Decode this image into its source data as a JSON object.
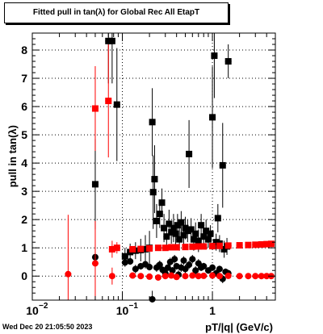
{
  "title": "Fitted pull in tan(λ) for Global Rec All EtapT",
  "timestamp": "Wed Dec 20 21:05:50 2023",
  "chart_data": {
    "type": "scatter",
    "title": "Fitted pull in tan(λ) for Global Rec All EtapT",
    "xlabel": "pT/|q| (GeV/c)",
    "ylabel": "pull in tan(λ)",
    "xscale": "log",
    "xlim": [
      0.01,
      5
    ],
    "ylim": [
      -0.85,
      8.6
    ],
    "grid": true,
    "x_ticks": [
      {
        "value": 0.01,
        "label": "10",
        "sup": "−2"
      },
      {
        "value": 0.1,
        "label": "10",
        "sup": "−1"
      },
      {
        "value": 1,
        "label": "1",
        "sup": ""
      }
    ],
    "y_ticks": [
      {
        "value": 0,
        "label": "0"
      },
      {
        "value": 1,
        "label": "1"
      },
      {
        "value": 2,
        "label": "2"
      },
      {
        "value": 3,
        "label": "3"
      },
      {
        "value": 4,
        "label": "4"
      },
      {
        "value": 5,
        "label": "5"
      },
      {
        "value": 6,
        "label": "6"
      },
      {
        "value": 7,
        "label": "7"
      },
      {
        "value": 8,
        "label": "8"
      }
    ],
    "series": [
      {
        "key": "black_sigma",
        "color": "#000000",
        "marker": "square",
        "points": [
          [
            0.05,
            3.25,
            1.6
          ],
          [
            0.07,
            8.32,
            1.5
          ],
          [
            0.077,
            8.32,
            1.5
          ],
          [
            0.087,
            6.07,
            2.0
          ],
          [
            0.107,
            0.7,
            0.3
          ],
          [
            0.122,
            0.85,
            0.3
          ],
          [
            0.14,
            0.9,
            0.3
          ],
          [
            0.16,
            0.92,
            0.4
          ],
          [
            0.18,
            0.95,
            0.5
          ],
          [
            0.2,
            1.0,
            0.6
          ],
          [
            0.215,
            5.45,
            1.2
          ],
          [
            0.22,
            2.97,
            1.3
          ],
          [
            0.228,
            3.43,
            1.2
          ],
          [
            0.24,
            1.95,
            0.6
          ],
          [
            0.26,
            2.2,
            0.5
          ],
          [
            0.275,
            2.6,
            0.5
          ],
          [
            0.29,
            1.7,
            0.5
          ],
          [
            0.31,
            1.4,
            0.5
          ],
          [
            0.33,
            1.85,
            0.5
          ],
          [
            0.35,
            1.55,
            0.4
          ],
          [
            0.37,
            1.7,
            0.5
          ],
          [
            0.39,
            1.5,
            0.4
          ],
          [
            0.41,
            1.8,
            0.4
          ],
          [
            0.43,
            1.3,
            0.4
          ],
          [
            0.45,
            1.9,
            0.4
          ],
          [
            0.48,
            1.45,
            0.4
          ],
          [
            0.5,
            1.7,
            0.4
          ],
          [
            0.53,
            1.6,
            0.4
          ],
          [
            0.55,
            4.32,
            1.2
          ],
          [
            0.58,
            1.65,
            0.4
          ],
          [
            0.62,
            1.3,
            0.4
          ],
          [
            0.65,
            1.5,
            0.4
          ],
          [
            0.7,
            1.25,
            0.4
          ],
          [
            0.75,
            1.8,
            0.4
          ],
          [
            0.8,
            1.4,
            0.4
          ],
          [
            0.85,
            1.6,
            0.4
          ],
          [
            0.9,
            1.3,
            0.3
          ],
          [
            0.95,
            1.5,
            0.3
          ],
          [
            1.0,
            5.62,
            1.8
          ],
          [
            1.05,
            7.8,
            1.5
          ],
          [
            1.1,
            1.2,
            0.3
          ],
          [
            1.15,
            2.05,
            0.5
          ],
          [
            1.2,
            1.15,
            0.3
          ],
          [
            1.3,
            3.92,
            1.5
          ],
          [
            1.35,
            0.95,
            0.3
          ],
          [
            1.45,
            1.05,
            0.3
          ],
          [
            1.5,
            7.6,
            0.6
          ]
        ]
      },
      {
        "key": "black_mean",
        "color": "#000000",
        "marker": "circle",
        "points": [
          [
            0.05,
            0.67,
            0.15
          ],
          [
            0.107,
            0.48,
            0.15
          ],
          [
            0.122,
            0.52,
            0.12
          ],
          [
            0.14,
            0.25,
            0.15
          ],
          [
            0.16,
            0.35,
            0.12
          ],
          [
            0.18,
            0.42,
            0.15
          ],
          [
            0.2,
            0.32,
            0.12
          ],
          [
            0.215,
            -0.82,
            0.3
          ],
          [
            0.24,
            0.3,
            0.15
          ],
          [
            0.26,
            0.4,
            0.15
          ],
          [
            0.28,
            0.22,
            0.12
          ],
          [
            0.3,
            0.1,
            0.15
          ],
          [
            0.32,
            0.3,
            0.12
          ],
          [
            0.34,
            0.5,
            0.15
          ],
          [
            0.36,
            0.2,
            0.12
          ],
          [
            0.38,
            0.6,
            0.15
          ],
          [
            0.4,
            0.35,
            0.12
          ],
          [
            0.42,
            0.05,
            0.15
          ],
          [
            0.45,
            0.3,
            0.15
          ],
          [
            0.48,
            0.55,
            0.15
          ],
          [
            0.5,
            0.25,
            0.15
          ],
          [
            0.55,
            0.4,
            0.15
          ],
          [
            0.6,
            0.6,
            0.15
          ],
          [
            0.65,
            0.2,
            0.15
          ],
          [
            0.7,
            0.45,
            0.15
          ],
          [
            0.75,
            0.3,
            0.12
          ],
          [
            0.8,
            0.35,
            0.12
          ],
          [
            0.9,
            0.2,
            0.12
          ],
          [
            1.0,
            0.3,
            0.12
          ],
          [
            1.1,
            0.1,
            0.12
          ],
          [
            1.2,
            0.25,
            0.12
          ],
          [
            1.3,
            -0.1,
            0.15
          ],
          [
            1.4,
            0.15,
            0.12
          ],
          [
            1.5,
            0.1,
            0.12
          ]
        ]
      },
      {
        "key": "red_sigma",
        "color": "#ff0000",
        "marker": "square",
        "points": [
          [
            0.05,
            5.93,
            1.5
          ],
          [
            0.07,
            6.2,
            2.0
          ],
          [
            0.077,
            0.95,
            0.3
          ],
          [
            0.087,
            1.0,
            0.2
          ],
          [
            0.13,
            0.95,
            0.1
          ],
          [
            0.16,
            0.96,
            0.1
          ],
          [
            0.2,
            0.98,
            0.1
          ],
          [
            0.25,
            1.0,
            0.08
          ],
          [
            0.3,
            1.0,
            0.08
          ],
          [
            0.35,
            1.02,
            0.08
          ],
          [
            0.4,
            1.02,
            0.06
          ],
          [
            0.5,
            1.03,
            0.06
          ],
          [
            0.6,
            1.04,
            0.05
          ],
          [
            0.7,
            1.05,
            0.05
          ],
          [
            0.8,
            1.05,
            0.05
          ],
          [
            1.0,
            1.06,
            0.05
          ],
          [
            1.2,
            1.07,
            0.05
          ],
          [
            1.5,
            1.08,
            0.05
          ],
          [
            2.0,
            1.09,
            0.05
          ],
          [
            2.5,
            1.1,
            0.05
          ],
          [
            3.0,
            1.11,
            0.05
          ],
          [
            3.5,
            1.12,
            0.05
          ],
          [
            4.0,
            1.13,
            0.05
          ],
          [
            4.5,
            1.14,
            0.05
          ]
        ]
      },
      {
        "key": "red_mean",
        "color": "#ff0000",
        "marker": "circle",
        "points": [
          [
            0.025,
            0.07,
            2.1
          ],
          [
            0.05,
            0.45,
            1.5
          ],
          [
            0.077,
            0.0,
            0.3
          ],
          [
            0.13,
            0.02,
            0.05
          ],
          [
            0.16,
            0.0,
            0.05
          ],
          [
            0.2,
            -0.02,
            0.05
          ],
          [
            0.25,
            -0.05,
            0.05
          ],
          [
            0.3,
            0.0,
            0.05
          ],
          [
            0.35,
            0.02,
            0.05
          ],
          [
            0.4,
            -0.03,
            0.05
          ],
          [
            0.5,
            0.0,
            0.05
          ],
          [
            0.6,
            0.02,
            0.05
          ],
          [
            0.7,
            0.0,
            0.05
          ],
          [
            0.8,
            0.01,
            0.05
          ],
          [
            1.0,
            0.02,
            0.05
          ],
          [
            1.2,
            0.0,
            0.05
          ],
          [
            1.5,
            0.01,
            0.05
          ],
          [
            2.0,
            0.0,
            0.05
          ],
          [
            2.5,
            0.0,
            0.05
          ],
          [
            3.0,
            0.0,
            0.05
          ],
          [
            3.5,
            0.0,
            0.05
          ],
          [
            4.0,
            0.0,
            0.05
          ],
          [
            4.5,
            0.0,
            0.05
          ]
        ]
      }
    ]
  }
}
